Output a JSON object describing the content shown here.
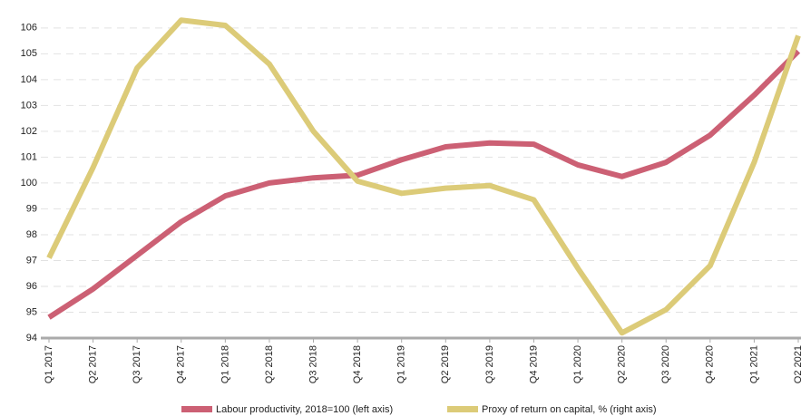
{
  "chart_data": {
    "type": "line",
    "categories": [
      "Q1 2017",
      "Q2 2017",
      "Q3 2017",
      "Q4 2017",
      "Q1 2018",
      "Q2 2018",
      "Q3 2018",
      "Q4 2018",
      "Q1 2019",
      "Q2 2019",
      "Q3 2019",
      "Q4 2019",
      "Q1 2020",
      "Q2 2020",
      "Q3 2020",
      "Q4 2020",
      "Q1 2021",
      "Q2 2021"
    ],
    "series": [
      {
        "name": "Labour productivity, 2018=100 (left axis)",
        "color": "#cc6074",
        "values": [
          94.8,
          95.9,
          97.2,
          98.5,
          99.5,
          100.0,
          100.2,
          100.3,
          100.9,
          101.4,
          101.55,
          101.5,
          100.7,
          100.25,
          100.8,
          101.85,
          103.4,
          105.1
        ]
      },
      {
        "name": "Proxy of return on capital, % (right axis)",
        "color": "#dccb78",
        "values": [
          97.1,
          100.6,
          104.45,
          106.3,
          106.1,
          104.6,
          102.0,
          100.07,
          99.6,
          99.8,
          99.9,
          99.35,
          96.7,
          94.2,
          95.1,
          96.8,
          100.8,
          105.7
        ]
      }
    ],
    "ylim": [
      94,
      106.8
    ],
    "yticks": [
      94,
      95,
      96,
      97,
      98,
      99,
      100,
      101,
      102,
      103,
      104,
      105,
      106
    ],
    "grid": true
  }
}
